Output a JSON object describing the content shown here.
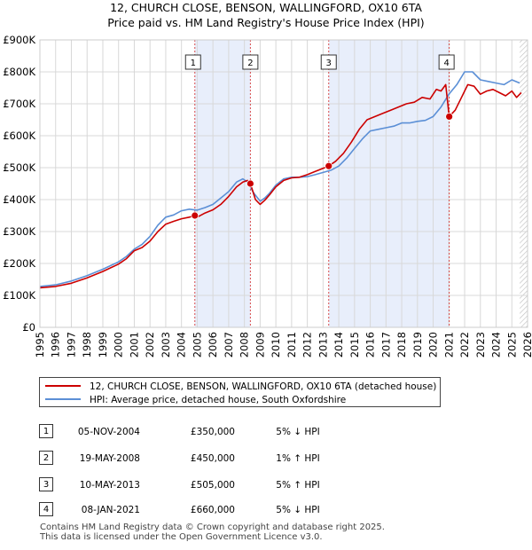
{
  "header": {
    "title_line1": "12, CHURCH CLOSE, BENSON, WALLINGFORD, OX10 6TA",
    "title_line2": "Price paid vs. HM Land Registry's House Price Index (HPI)"
  },
  "chart_data": {
    "type": "line",
    "title": "12, CHURCH CLOSE, BENSON, WALLINGFORD, OX10 6TA — Price paid vs. HM Land Registry's House Price Index (HPI)",
    "xlim": [
      1995,
      2026
    ],
    "ylim": [
      0,
      900000
    ],
    "x_ticks": [
      1995,
      1996,
      1997,
      1998,
      1999,
      2000,
      2001,
      2002,
      2003,
      2004,
      2005,
      2006,
      2007,
      2008,
      2009,
      2010,
      2011,
      2012,
      2013,
      2014,
      2015,
      2016,
      2017,
      2018,
      2019,
      2020,
      2021,
      2022,
      2023,
      2024,
      2025,
      2026
    ],
    "y_ticks": [
      0,
      100000,
      200000,
      300000,
      400000,
      500000,
      600000,
      700000,
      800000,
      900000
    ],
    "y_tick_labels": [
      "£0",
      "£100K",
      "£200K",
      "£300K",
      "£400K",
      "£500K",
      "£600K",
      "£700K",
      "£800K",
      "£900K"
    ],
    "grid": true,
    "legend_position": "below",
    "shaded_periods": [
      [
        2004.85,
        2008.38
      ],
      [
        2013.36,
        2021.02
      ]
    ],
    "hatched_region": [
      2025.5,
      2026
    ],
    "series": [
      {
        "name": "12, CHURCH CLOSE, BENSON, WALLINGFORD, OX10 6TA (detached house)",
        "color": "#cc0000",
        "x": [
          1995,
          1996,
          1997,
          1998,
          1999,
          2000,
          2000.5,
          2001,
          2001.5,
          2002,
          2002.5,
          2003,
          2003.5,
          2004,
          2004.5,
          2004.85,
          2005,
          2005.5,
          2006,
          2006.5,
          2007,
          2007.5,
          2007.9,
          2008.2,
          2008.38,
          2008.7,
          2009,
          2009.3,
          2009.6,
          2010,
          2010.5,
          2011,
          2011.5,
          2012,
          2012.5,
          2013,
          2013.36,
          2013.8,
          2014.3,
          2014.8,
          2015.3,
          2015.8,
          2016.3,
          2016.8,
          2017.3,
          2017.8,
          2018.3,
          2018.8,
          2019.3,
          2019.8,
          2020.2,
          2020.5,
          2020.8,
          2021.02,
          2021.4,
          2021.8,
          2022.2,
          2022.6,
          2023,
          2023.4,
          2023.8,
          2024.2,
          2024.6,
          2025,
          2025.3,
          2025.6
        ],
        "values": [
          124000,
          128000,
          138000,
          155000,
          175000,
          198000,
          215000,
          240000,
          250000,
          270000,
          300000,
          323000,
          332000,
          340000,
          345000,
          350000,
          345000,
          358000,
          368000,
          385000,
          410000,
          440000,
          455000,
          460000,
          450000,
          400000,
          385000,
          398000,
          415000,
          440000,
          460000,
          468000,
          470000,
          478000,
          488000,
          498000,
          505000,
          520000,
          545000,
          580000,
          620000,
          650000,
          660000,
          670000,
          680000,
          690000,
          700000,
          705000,
          720000,
          715000,
          745000,
          740000,
          760000,
          660000,
          680000,
          720000,
          760000,
          755000,
          730000,
          740000,
          745000,
          735000,
          725000,
          740000,
          720000,
          735000
        ]
      },
      {
        "name": "HPI: Average price, detached house, South Oxfordshire",
        "color": "#5b8fd6",
        "x": [
          1995,
          1996,
          1997,
          1998,
          1999,
          2000,
          2000.5,
          2001,
          2001.5,
          2002,
          2002.5,
          2003,
          2003.5,
          2004,
          2004.5,
          2005,
          2005.5,
          2006,
          2006.5,
          2007,
          2007.5,
          2007.9,
          2008.2,
          2008.6,
          2009,
          2009.3,
          2009.6,
          2010,
          2010.5,
          2011,
          2011.5,
          2012,
          2012.5,
          2013,
          2013.5,
          2014,
          2014.5,
          2015,
          2015.5,
          2016,
          2016.5,
          2017,
          2017.5,
          2018,
          2018.5,
          2019,
          2019.5,
          2020,
          2020.5,
          2021,
          2021.5,
          2022,
          2022.5,
          2023,
          2023.5,
          2024,
          2024.5,
          2025,
          2025.5
        ],
        "values": [
          128000,
          133000,
          145000,
          162000,
          182000,
          205000,
          222000,
          245000,
          260000,
          285000,
          320000,
          345000,
          352000,
          365000,
          370000,
          367000,
          375000,
          385000,
          405000,
          425000,
          455000,
          465000,
          455000,
          420000,
          395000,
          405000,
          420000,
          445000,
          465000,
          470000,
          470000,
          472000,
          478000,
          485000,
          492000,
          505000,
          530000,
          560000,
          590000,
          615000,
          620000,
          625000,
          630000,
          640000,
          640000,
          645000,
          648000,
          660000,
          690000,
          730000,
          760000,
          800000,
          800000,
          775000,
          770000,
          765000,
          760000,
          775000,
          765000
        ]
      }
    ],
    "sale_markers": [
      {
        "label": "1",
        "x": 2004.85,
        "value": 350000
      },
      {
        "label": "2",
        "x": 2008.38,
        "value": 450000
      },
      {
        "label": "3",
        "x": 2013.36,
        "value": 505000
      },
      {
        "label": "4",
        "x": 2021.02,
        "value": 660000
      }
    ]
  },
  "legend": {
    "property_label": "12, CHURCH CLOSE, BENSON, WALLINGFORD, OX10 6TA (detached house)",
    "hpi_label": "HPI: Average price, detached house, South Oxfordshire",
    "property_color": "#cc0000",
    "hpi_color": "#5b8fd6"
  },
  "sales": [
    {
      "num": "1",
      "date": "05-NOV-2004",
      "price": "£350,000",
      "hpi": "5% ↓ HPI"
    },
    {
      "num": "2",
      "date": "19-MAY-2008",
      "price": "£450,000",
      "hpi": "1% ↑ HPI"
    },
    {
      "num": "3",
      "date": "10-MAY-2013",
      "price": "£505,000",
      "hpi": "5% ↑ HPI"
    },
    {
      "num": "4",
      "date": "08-JAN-2021",
      "price": "£660,000",
      "hpi": "5% ↓ HPI"
    }
  ],
  "footer": {
    "line1": "Contains HM Land Registry data © Crown copyright and database right 2025.",
    "line2": "This data is licensed under the Open Government Licence v3.0."
  }
}
